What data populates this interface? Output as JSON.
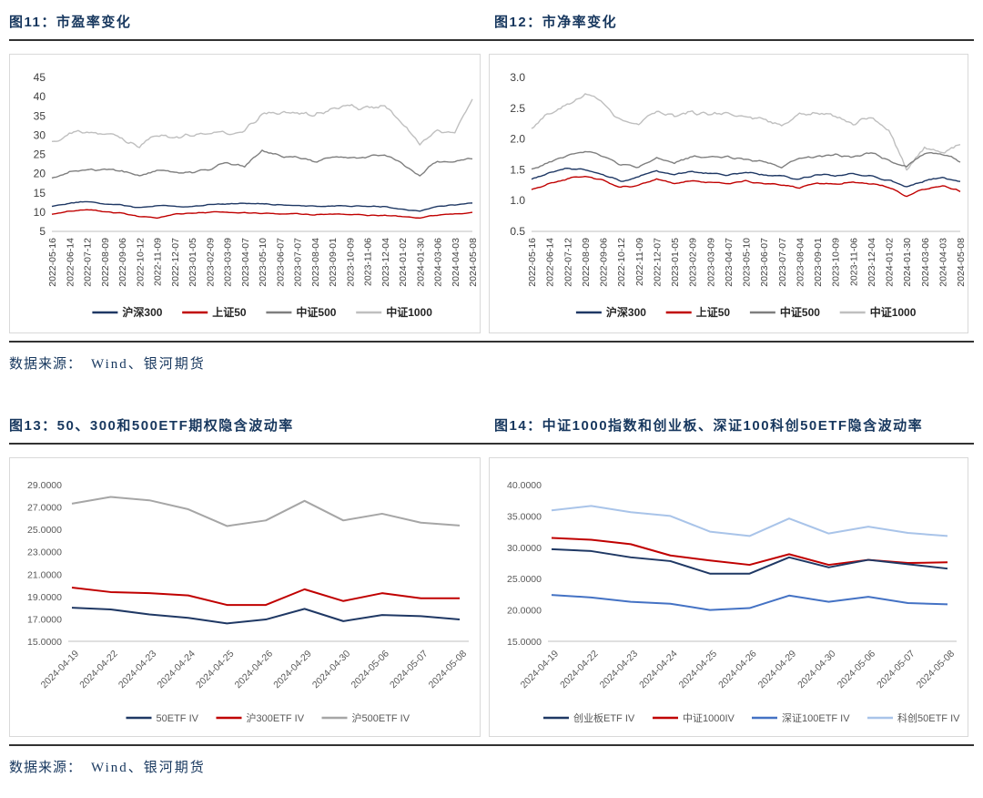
{
  "page": {
    "source_note_label": "数据来源：",
    "source_note_value": "Wind、银河期货"
  },
  "colors": {
    "title_navy": "#17375E",
    "rule_dark": "#323232",
    "box_border": "#D9D9D9",
    "axis_line": "#BFBFBF"
  },
  "chart_data": [
    {
      "id": "fig11",
      "type": "line",
      "title": "图11：市盈率变化",
      "xlabel": "",
      "ylabel": "",
      "ylim": [
        5,
        45
      ],
      "ytick_values": [
        5,
        10,
        15,
        20,
        25,
        30,
        35,
        40,
        45
      ],
      "ytick_labels": [
        "5",
        "10",
        "15",
        "20",
        "25",
        "30",
        "35",
        "40",
        "45"
      ],
      "xlabel_rotation": 90,
      "grid": false,
      "legend_position": "bottom",
      "upsample": 8,
      "categories": [
        "2022-05-16",
        "2022-06-14",
        "2022-07-12",
        "2022-08-09",
        "2022-09-06",
        "2022-10-12",
        "2022-11-09",
        "2022-12-07",
        "2023-01-05",
        "2023-02-09",
        "2023-03-09",
        "2023-04-07",
        "2023-05-10",
        "2023-06-07",
        "2023-07-07",
        "2023-08-04",
        "2023-09-01",
        "2023-10-09",
        "2023-11-06",
        "2023-12-04",
        "2024-01-02",
        "2024-01-30",
        "2024-03-06",
        "2024-04-03",
        "2024-05-08"
      ],
      "series": [
        {
          "name": "沪深300",
          "color": "#1F3864",
          "noise": 0.12,
          "values": [
            11.5,
            12.3,
            12.8,
            12.2,
            11.8,
            11.2,
            11.7,
            11.6,
            11.4,
            12.0,
            12.1,
            12.3,
            12.1,
            11.9,
            11.8,
            11.5,
            11.7,
            11.6,
            11.5,
            11.4,
            10.7,
            10.2,
            11.5,
            11.9,
            12.4
          ]
        },
        {
          "name": "上证50",
          "color": "#C00000",
          "noise": 0.12,
          "values": [
            9.5,
            10.2,
            10.7,
            10.1,
            9.7,
            8.9,
            8.6,
            9.5,
            9.7,
            10.0,
            10.0,
            9.8,
            9.7,
            9.5,
            9.6,
            9.3,
            9.5,
            9.4,
            9.2,
            9.1,
            8.9,
            8.5,
            9.3,
            9.6,
            9.9
          ]
        },
        {
          "name": "中证500",
          "color": "#7F7F7F",
          "noise": 0.28,
          "values": [
            18.8,
            20.2,
            20.9,
            21.2,
            20.7,
            19.6,
            20.8,
            20.4,
            20.3,
            21.3,
            22.6,
            21.8,
            26.0,
            24.7,
            24.2,
            23.2,
            24.3,
            24.0,
            24.5,
            24.8,
            22.8,
            19.7,
            23.2,
            23.3,
            23.9
          ]
        },
        {
          "name": "中证1000",
          "color": "#BFBFBF",
          "noise": 0.5,
          "values": [
            27.8,
            30.2,
            31.2,
            30.2,
            29.3,
            27.0,
            30.2,
            29.6,
            29.8,
            31.0,
            30.6,
            31.2,
            35.8,
            35.8,
            36.4,
            34.8,
            37.2,
            37.6,
            37.0,
            37.8,
            33.0,
            27.3,
            31.2,
            31.3,
            39.4
          ]
        }
      ]
    },
    {
      "id": "fig12",
      "type": "line",
      "title": "图12：市净率变化",
      "xlabel": "",
      "ylabel": "",
      "ylim": [
        0.5,
        3.0
      ],
      "ytick_values": [
        0.5,
        1.0,
        1.5,
        2.0,
        2.5,
        3.0
      ],
      "ytick_labels": [
        "0.5",
        "1.0",
        "1.5",
        "2.0",
        "2.5",
        "3.0"
      ],
      "xlabel_rotation": 90,
      "grid": false,
      "legend_position": "bottom",
      "upsample": 8,
      "categories": [
        "2022-05-16",
        "2022-06-14",
        "2022-07-12",
        "2022-08-09",
        "2022-09-06",
        "2022-10-12",
        "2022-11-09",
        "2022-12-07",
        "2023-01-05",
        "2023-02-09",
        "2023-03-09",
        "2023-04-07",
        "2023-05-10",
        "2023-06-07",
        "2023-07-07",
        "2023-08-04",
        "2023-09-01",
        "2023-10-09",
        "2023-11-06",
        "2023-12-04",
        "2024-01-02",
        "2024-01-30",
        "2024-03-06",
        "2024-04-03",
        "2024-05-08"
      ],
      "series": [
        {
          "name": "沪深300",
          "color": "#1F3864",
          "noise": 0.012,
          "values": [
            1.35,
            1.45,
            1.53,
            1.5,
            1.42,
            1.32,
            1.38,
            1.48,
            1.42,
            1.47,
            1.44,
            1.42,
            1.46,
            1.42,
            1.4,
            1.35,
            1.42,
            1.4,
            1.43,
            1.4,
            1.33,
            1.22,
            1.32,
            1.38,
            1.3
          ]
        },
        {
          "name": "上证50",
          "color": "#C00000",
          "noise": 0.012,
          "values": [
            1.18,
            1.28,
            1.35,
            1.4,
            1.32,
            1.22,
            1.25,
            1.35,
            1.28,
            1.32,
            1.3,
            1.28,
            1.32,
            1.28,
            1.26,
            1.2,
            1.28,
            1.26,
            1.3,
            1.28,
            1.22,
            1.07,
            1.18,
            1.25,
            1.15
          ]
        },
        {
          "name": "中证500",
          "color": "#7F7F7F",
          "noise": 0.018,
          "values": [
            1.52,
            1.62,
            1.72,
            1.8,
            1.72,
            1.58,
            1.55,
            1.68,
            1.62,
            1.72,
            1.7,
            1.72,
            1.68,
            1.62,
            1.55,
            1.68,
            1.72,
            1.75,
            1.7,
            1.78,
            1.65,
            1.55,
            1.78,
            1.75,
            1.65
          ]
        },
        {
          "name": "中证1000",
          "color": "#BFBFBF",
          "noise": 0.032,
          "values": [
            2.2,
            2.4,
            2.55,
            2.75,
            2.6,
            2.3,
            2.25,
            2.45,
            2.35,
            2.45,
            2.4,
            2.42,
            2.38,
            2.3,
            2.2,
            2.4,
            2.42,
            2.4,
            2.25,
            2.35,
            2.15,
            1.5,
            1.85,
            1.8,
            1.9
          ]
        }
      ]
    },
    {
      "id": "fig13",
      "type": "line",
      "title": "图13：50、300和500ETF期权隐含波动率",
      "xlabel": "",
      "ylabel": "",
      "ylim": [
        15,
        29
      ],
      "ytick_values": [
        15,
        17,
        19,
        21,
        23,
        25,
        27,
        29
      ],
      "ytick_labels": [
        "15.0000",
        "17.0000",
        "19.0000",
        "21.0000",
        "23.0000",
        "25.0000",
        "27.0000",
        "29.0000"
      ],
      "xlabel_rotation": 45,
      "grid": false,
      "legend_position": "bottom",
      "upsample": 1,
      "categories": [
        "2024-04-19",
        "2024-04-22",
        "2024-04-23",
        "2024-04-24",
        "2024-04-25",
        "2024-04-26",
        "2024-04-29",
        "2024-04-30",
        "2024-05-06",
        "2024-05-07",
        "2024-05-08"
      ],
      "series": [
        {
          "name": "50ETF IV",
          "color": "#1F3864",
          "noise": 0,
          "values": [
            18.0,
            17.85,
            17.4,
            17.1,
            16.6,
            16.95,
            17.9,
            16.8,
            17.35,
            17.25,
            16.95
          ]
        },
        {
          "name": "沪300ETF IV",
          "color": "#C00000",
          "noise": 0,
          "values": [
            19.8,
            19.4,
            19.3,
            19.1,
            18.25,
            18.25,
            19.65,
            18.6,
            19.3,
            18.85,
            18.85
          ]
        },
        {
          "name": "沪500ETF IV",
          "color": "#A6A6A6",
          "noise": 0,
          "values": [
            27.3,
            27.9,
            27.6,
            26.8,
            25.3,
            25.8,
            27.55,
            25.8,
            26.4,
            25.6,
            25.35
          ]
        }
      ]
    },
    {
      "id": "fig14",
      "type": "line",
      "title": "图14：中证1000指数和创业板、深证100科创50ETF隐含波动率",
      "xlabel": "",
      "ylabel": "",
      "ylim": [
        15,
        40
      ],
      "ytick_values": [
        15,
        20,
        25,
        30,
        35,
        40
      ],
      "ytick_labels": [
        "15.0000",
        "20.0000",
        "25.0000",
        "30.0000",
        "35.0000",
        "40.0000"
      ],
      "xlabel_rotation": 45,
      "grid": false,
      "legend_position": "bottom",
      "upsample": 1,
      "categories": [
        "2024-04-19",
        "2024-04-22",
        "2024-04-23",
        "2024-04-24",
        "2024-04-25",
        "2024-04-26",
        "2024-04-29",
        "2024-04-30",
        "2024-05-06",
        "2024-05-07",
        "2024-05-08"
      ],
      "series": [
        {
          "name": "创业板ETF IV",
          "color": "#1F3864",
          "noise": 0,
          "values": [
            29.7,
            29.4,
            28.4,
            27.8,
            25.8,
            25.8,
            28.4,
            26.8,
            28.0,
            27.3,
            26.6
          ]
        },
        {
          "name": "中证1000IV",
          "color": "#C00000",
          "noise": 0,
          "values": [
            31.5,
            31.2,
            30.5,
            28.7,
            27.9,
            27.2,
            28.9,
            27.2,
            28.0,
            27.5,
            27.6
          ]
        },
        {
          "name": "深证100ETF IV",
          "color": "#4472C4",
          "noise": 0,
          "values": [
            22.4,
            22.0,
            21.3,
            21.0,
            20.0,
            20.3,
            22.3,
            21.3,
            22.1,
            21.1,
            20.9
          ]
        },
        {
          "name": "科创50ETF IV",
          "color": "#A9C4E9",
          "noise": 0,
          "values": [
            35.9,
            36.6,
            35.6,
            35.0,
            32.5,
            31.8,
            34.6,
            32.2,
            33.3,
            32.3,
            31.8
          ]
        }
      ]
    }
  ]
}
